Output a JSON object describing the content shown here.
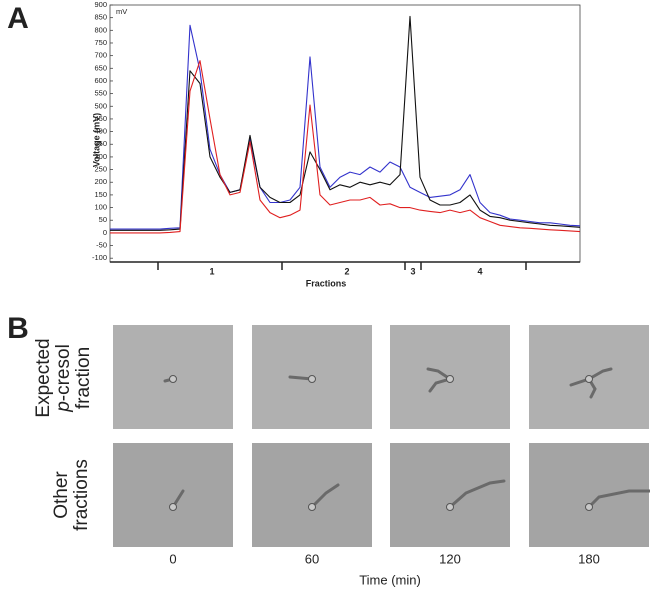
{
  "chart_data": {
    "type": "line",
    "panel_label": "A",
    "unit_label": "mV",
    "y_label": "Voltage (mV)",
    "x_label": "Fractions",
    "fractions": [
      "1",
      "2",
      "3",
      "4"
    ],
    "ylim": [
      -115,
      900
    ],
    "yticks": [
      -100,
      -50,
      0,
      50,
      100,
      150,
      200,
      250,
      300,
      350,
      400,
      450,
      500,
      550,
      600,
      650,
      700,
      750,
      800,
      850,
      900
    ],
    "series": [
      {
        "color": "#3333cc",
        "values": [
          15,
          15,
          15,
          15,
          15,
          15,
          18,
          20,
          820,
          640,
          330,
          230,
          160,
          170,
          370,
          180,
          120,
          120,
          130,
          180,
          695,
          260,
          180,
          220,
          240,
          230,
          260,
          240,
          280,
          260,
          180,
          160,
          140,
          145,
          150,
          170,
          230,
          120,
          80,
          70,
          55,
          50,
          45,
          40,
          40,
          35,
          30,
          28
        ]
      },
      {
        "color": "#111111",
        "values": [
          10,
          10,
          10,
          10,
          10,
          10,
          12,
          15,
          640,
          590,
          300,
          220,
          160,
          170,
          385,
          180,
          140,
          120,
          120,
          150,
          320,
          250,
          170,
          190,
          180,
          200,
          190,
          200,
          190,
          230,
          855,
          220,
          130,
          110,
          110,
          120,
          150,
          90,
          65,
          60,
          50,
          45,
          40,
          35,
          30,
          28,
          25,
          22
        ]
      },
      {
        "color": "#e02020",
        "values": [
          0,
          0,
          0,
          0,
          0,
          0,
          2,
          5,
          560,
          680,
          450,
          230,
          150,
          160,
          360,
          130,
          80,
          60,
          70,
          90,
          505,
          150,
          110,
          120,
          130,
          130,
          140,
          110,
          115,
          100,
          100,
          90,
          85,
          80,
          90,
          80,
          90,
          60,
          45,
          30,
          25,
          20,
          18,
          15,
          12,
          10,
          8,
          5
        ]
      }
    ]
  },
  "panel_b": {
    "panel_label": "B",
    "row_labels": [
      [
        "Expected",
        [
          "p",
          "-cresol"
        ],
        "fraction"
      ],
      [
        "Other",
        "fractions"
      ]
    ],
    "column_labels": [
      "0",
      "60",
      "120",
      "180"
    ],
    "x_label": "Time (min)"
  }
}
